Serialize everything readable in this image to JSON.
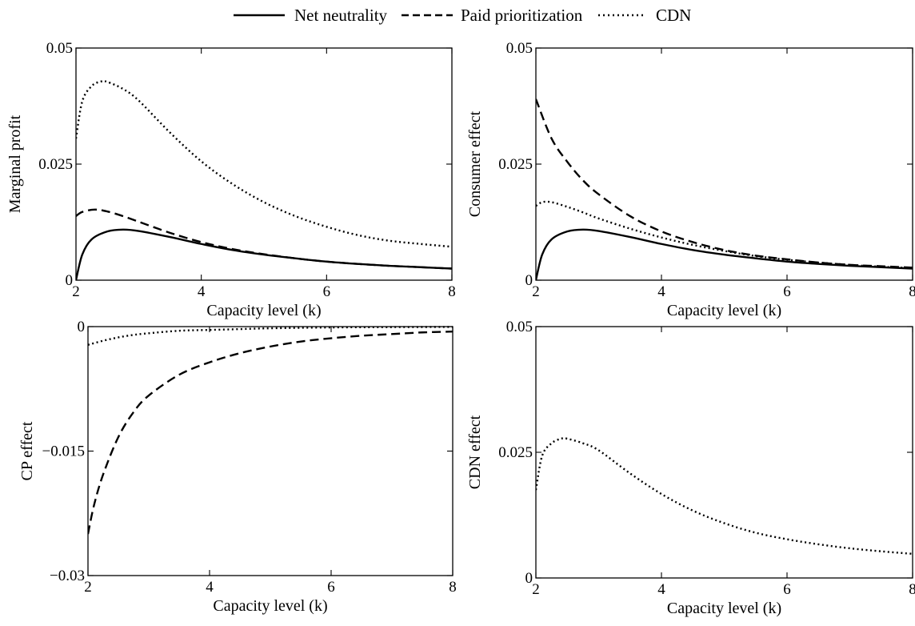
{
  "legend": {
    "entries": [
      {
        "name": "Net neutrality",
        "style": "solid"
      },
      {
        "name": "Paid prioritization",
        "style": "dashed"
      },
      {
        "name": "CDN",
        "style": "dotted"
      }
    ]
  },
  "chart_data": [
    {
      "type": "line",
      "xlabel": "Capacity level (k)",
      "ylabel": "Marginal profit",
      "xlim": [
        2,
        8
      ],
      "ylim": [
        0,
        0.05
      ],
      "xticks": [
        "2",
        "4",
        "6",
        "8"
      ],
      "yticks": [
        "0",
        "0.025",
        "0.05"
      ],
      "grid": false,
      "series": [
        {
          "name": "Net neutrality",
          "style": "solid",
          "x": [
            2,
            2.1,
            2.25,
            2.5,
            2.75,
            3,
            3.5,
            4,
            4.5,
            5,
            5.5,
            6,
            6.5,
            7,
            7.5,
            8
          ],
          "y": [
            0,
            0.0055,
            0.0088,
            0.0105,
            0.0109,
            0.0106,
            0.0093,
            0.0078,
            0.0065,
            0.0055,
            0.0047,
            0.004,
            0.0035,
            0.0031,
            0.0028,
            0.0025
          ]
        },
        {
          "name": "Paid prioritization",
          "style": "dashed",
          "x": [
            2,
            2.1,
            2.3,
            2.5,
            2.75,
            3,
            3.5,
            4,
            4.5,
            5,
            5.5,
            6,
            6.5,
            7,
            7.5,
            8
          ],
          "y": [
            0.0138,
            0.0147,
            0.0152,
            0.0148,
            0.0138,
            0.0126,
            0.0102,
            0.0082,
            0.0067,
            0.0056,
            0.0047,
            0.004,
            0.0035,
            0.0031,
            0.0028,
            0.0025
          ]
        },
        {
          "name": "CDN",
          "style": "dotted",
          "x": [
            2,
            2.1,
            2.25,
            2.4,
            2.5,
            2.75,
            3,
            3.5,
            4,
            4.5,
            5,
            5.5,
            6,
            6.5,
            7,
            7.5,
            8
          ],
          "y": [
            0.0305,
            0.0385,
            0.0418,
            0.0428,
            0.0427,
            0.0412,
            0.0387,
            0.0318,
            0.0256,
            0.0207,
            0.0168,
            0.0138,
            0.0115,
            0.0097,
            0.0085,
            0.0078,
            0.0072
          ]
        }
      ]
    },
    {
      "type": "line",
      "xlabel": "Capacity level (k)",
      "ylabel": "Consumer effect",
      "xlim": [
        2,
        8
      ],
      "ylim": [
        0,
        0.05
      ],
      "xticks": [
        "2",
        "4",
        "6",
        "8"
      ],
      "yticks": [
        "0",
        "0.025",
        "0.05"
      ],
      "grid": false,
      "series": [
        {
          "name": "Net neutrality",
          "style": "solid",
          "x": [
            2,
            2.1,
            2.25,
            2.5,
            2.75,
            3,
            3.5,
            4,
            4.5,
            5,
            5.5,
            6,
            6.5,
            7,
            7.5,
            8
          ],
          "y": [
            0,
            0.0055,
            0.0088,
            0.0105,
            0.0109,
            0.0106,
            0.0093,
            0.0078,
            0.0065,
            0.0055,
            0.0047,
            0.004,
            0.0035,
            0.0031,
            0.0028,
            0.0025
          ]
        },
        {
          "name": "Paid prioritization",
          "style": "dashed",
          "x": [
            2,
            2.25,
            2.5,
            2.75,
            3,
            3.5,
            4,
            4.5,
            5,
            5.5,
            6,
            6.5,
            7,
            7.5,
            8
          ],
          "y": [
            0.039,
            0.0305,
            0.0255,
            0.0215,
            0.0185,
            0.0138,
            0.0105,
            0.0082,
            0.0065,
            0.0053,
            0.0045,
            0.0038,
            0.0033,
            0.003,
            0.0027
          ]
        },
        {
          "name": "CDN",
          "style": "dotted",
          "x": [
            2,
            2.1,
            2.25,
            2.5,
            2.75,
            3,
            3.5,
            4,
            4.5,
            5,
            5.5,
            6,
            6.5,
            7,
            7.5,
            8
          ],
          "y": [
            0.016,
            0.0168,
            0.0168,
            0.0158,
            0.0146,
            0.0133,
            0.0111,
            0.0092,
            0.0076,
            0.0063,
            0.0052,
            0.0044,
            0.0038,
            0.0033,
            0.0029,
            0.0026
          ]
        }
      ]
    },
    {
      "type": "line",
      "xlabel": "Capacity level (k)",
      "ylabel": "CP effect",
      "xlim": [
        2,
        8
      ],
      "ylim": [
        -0.03,
        0
      ],
      "xticks": [
        "2",
        "4",
        "6",
        "8"
      ],
      "yticks": [
        "−0.03",
        "−0.015",
        "0"
      ],
      "grid": false,
      "series": [
        {
          "name": "Paid prioritization",
          "style": "dashed",
          "x": [
            2,
            2.1,
            2.25,
            2.5,
            2.75,
            3,
            3.5,
            4,
            4.5,
            5,
            5.5,
            6,
            6.5,
            7,
            7.5,
            8
          ],
          "y": [
            -0.025,
            -0.0215,
            -0.0178,
            -0.0133,
            -0.0103,
            -0.0083,
            -0.0058,
            -0.0043,
            -0.0032,
            -0.0024,
            -0.0018,
            -0.0014,
            -0.0011,
            -0.0009,
            -0.0007,
            -0.0006
          ]
        },
        {
          "name": "CDN",
          "style": "dotted",
          "x": [
            2,
            2.25,
            2.5,
            2.75,
            3,
            3.5,
            4,
            4.5,
            5,
            6,
            7,
            8
          ],
          "y": [
            -0.0022,
            -0.0017,
            -0.0013,
            -0.001,
            -0.0008,
            -0.0005,
            -0.0004,
            -0.0003,
            -0.0002,
            -0.0001,
            -6e-05,
            -4e-05
          ]
        }
      ]
    },
    {
      "type": "line",
      "xlabel": "Capacity level (k)",
      "ylabel": "CDN effect",
      "xlim": [
        2,
        8
      ],
      "ylim": [
        0,
        0.05
      ],
      "xticks": [
        "2",
        "4",
        "6",
        "8"
      ],
      "yticks": [
        "0",
        "0.025",
        "0.05"
      ],
      "grid": false,
      "series": [
        {
          "name": "CDN",
          "style": "dotted",
          "x": [
            2,
            2.1,
            2.25,
            2.4,
            2.5,
            2.75,
            3,
            3.5,
            4,
            4.5,
            5,
            5.5,
            6,
            6.5,
            7,
            7.5,
            8
          ],
          "y": [
            0.0175,
            0.0243,
            0.0268,
            0.0277,
            0.0277,
            0.0268,
            0.0254,
            0.0208,
            0.0167,
            0.0134,
            0.0109,
            0.009,
            0.0077,
            0.0067,
            0.0059,
            0.0053,
            0.0048
          ]
        }
      ]
    }
  ]
}
